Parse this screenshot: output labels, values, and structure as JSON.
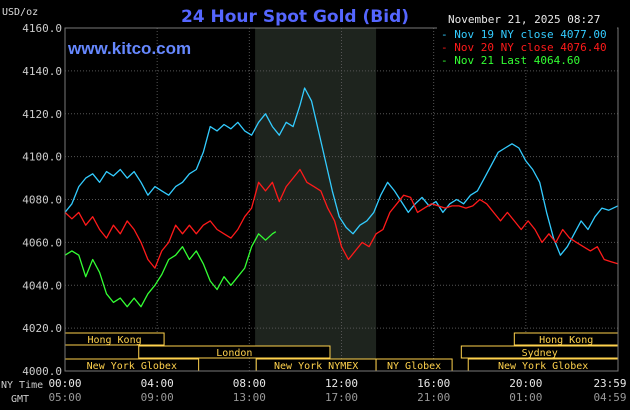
{
  "chart_data": {
    "type": "line",
    "title": "24 Hour Spot Gold (Bid)",
    "watermark": "www.kitco.com",
    "timestamp": "November 21, 2025 08:27",
    "ylabel": "USD/oz",
    "ylim": [
      4000,
      4160
    ],
    "yticks": [
      "4160.0",
      "4140.0",
      "4120.0",
      "4100.0",
      "4080.0",
      "4060.0",
      "4040.0",
      "4020.0",
      "4000.0"
    ],
    "xlim": [
      0,
      24
    ],
    "xticks_ny": [
      "00:00",
      "04:00",
      "08:00",
      "12:00",
      "16:00",
      "20:00",
      "23:59"
    ],
    "xticks_gmt": [
      "05:00",
      "09:00",
      "13:00",
      "17:00",
      "21:00",
      "01:00",
      "04:59"
    ],
    "x_axis_labels": [
      "NY Time",
      "GMT"
    ],
    "grid": true,
    "legend_position": "top-right",
    "highlight_window_hours": [
      8.25,
      13.5
    ],
    "colors": {
      "cyan": "#33ccff",
      "red": "#ff1a1a",
      "green": "#33ff33",
      "grid": "#555555",
      "session": "#ffd24d",
      "title": "#5566ff",
      "site": "#6688ff",
      "axis_text": "#cccccc"
    },
    "series": [
      {
        "name": "Nov 19",
        "legend": "Nov 19 NY close 4077.00",
        "color": "#33ccff",
        "points": [
          [
            0,
            4074
          ],
          [
            0.3,
            4078
          ],
          [
            0.6,
            4086
          ],
          [
            0.9,
            4090
          ],
          [
            1.2,
            4092
          ],
          [
            1.5,
            4088
          ],
          [
            1.8,
            4093
          ],
          [
            2.1,
            4091
          ],
          [
            2.4,
            4094
          ],
          [
            2.7,
            4090
          ],
          [
            3.0,
            4093
          ],
          [
            3.3,
            4088
          ],
          [
            3.6,
            4082
          ],
          [
            3.9,
            4086
          ],
          [
            4.2,
            4084
          ],
          [
            4.5,
            4082
          ],
          [
            4.8,
            4086
          ],
          [
            5.1,
            4088
          ],
          [
            5.4,
            4092
          ],
          [
            5.7,
            4094
          ],
          [
            6.0,
            4102
          ],
          [
            6.3,
            4114
          ],
          [
            6.6,
            4112
          ],
          [
            6.9,
            4115
          ],
          [
            7.2,
            4113
          ],
          [
            7.5,
            4116
          ],
          [
            7.8,
            4112
          ],
          [
            8.1,
            4110
          ],
          [
            8.4,
            4116
          ],
          [
            8.7,
            4120
          ],
          [
            9.0,
            4114
          ],
          [
            9.3,
            4110
          ],
          [
            9.6,
            4116
          ],
          [
            9.9,
            4114
          ],
          [
            10.2,
            4124
          ],
          [
            10.4,
            4132
          ],
          [
            10.7,
            4126
          ],
          [
            11.0,
            4112
          ],
          [
            11.3,
            4098
          ],
          [
            11.6,
            4084
          ],
          [
            11.9,
            4072
          ],
          [
            12.2,
            4067
          ],
          [
            12.5,
            4064
          ],
          [
            12.8,
            4068
          ],
          [
            13.1,
            4070
          ],
          [
            13.4,
            4074
          ],
          [
            13.7,
            4082
          ],
          [
            14.0,
            4088
          ],
          [
            14.3,
            4084
          ],
          [
            14.6,
            4079
          ],
          [
            14.9,
            4074
          ],
          [
            15.2,
            4078
          ],
          [
            15.5,
            4081
          ],
          [
            15.8,
            4077
          ],
          [
            16.1,
            4079
          ],
          [
            16.4,
            4074
          ],
          [
            16.7,
            4078
          ],
          [
            17.0,
            4080
          ],
          [
            17.3,
            4078
          ],
          [
            17.6,
            4082
          ],
          [
            17.9,
            4084
          ],
          [
            18.2,
            4090
          ],
          [
            18.5,
            4096
          ],
          [
            18.8,
            4102
          ],
          [
            19.1,
            4104
          ],
          [
            19.4,
            4106
          ],
          [
            19.7,
            4104
          ],
          [
            20.0,
            4098
          ],
          [
            20.3,
            4094
          ],
          [
            20.6,
            4088
          ],
          [
            20.9,
            4074
          ],
          [
            21.2,
            4062
          ],
          [
            21.5,
            4054
          ],
          [
            21.8,
            4058
          ],
          [
            22.1,
            4064
          ],
          [
            22.4,
            4070
          ],
          [
            22.7,
            4066
          ],
          [
            23.0,
            4072
          ],
          [
            23.3,
            4076
          ],
          [
            23.6,
            4075
          ],
          [
            23.99,
            4077
          ]
        ]
      },
      {
        "name": "Nov 20",
        "legend": "Nov 20 NY close 4076.40",
        "color": "#ff1a1a",
        "points": [
          [
            0,
            4074
          ],
          [
            0.3,
            4071
          ],
          [
            0.6,
            4074
          ],
          [
            0.9,
            4068
          ],
          [
            1.2,
            4072
          ],
          [
            1.5,
            4066
          ],
          [
            1.8,
            4062
          ],
          [
            2.1,
            4068
          ],
          [
            2.4,
            4064
          ],
          [
            2.7,
            4070
          ],
          [
            3.0,
            4066
          ],
          [
            3.3,
            4060
          ],
          [
            3.6,
            4052
          ],
          [
            3.9,
            4048
          ],
          [
            4.2,
            4056
          ],
          [
            4.5,
            4060
          ],
          [
            4.8,
            4068
          ],
          [
            5.1,
            4064
          ],
          [
            5.4,
            4068
          ],
          [
            5.7,
            4064
          ],
          [
            6.0,
            4068
          ],
          [
            6.3,
            4070
          ],
          [
            6.6,
            4066
          ],
          [
            6.9,
            4064
          ],
          [
            7.2,
            4062
          ],
          [
            7.5,
            4066
          ],
          [
            7.8,
            4072
          ],
          [
            8.1,
            4076
          ],
          [
            8.4,
            4088
          ],
          [
            8.7,
            4084
          ],
          [
            9.0,
            4088
          ],
          [
            9.3,
            4079
          ],
          [
            9.6,
            4086
          ],
          [
            9.9,
            4090
          ],
          [
            10.2,
            4094
          ],
          [
            10.5,
            4088
          ],
          [
            10.8,
            4086
          ],
          [
            11.1,
            4084
          ],
          [
            11.4,
            4076
          ],
          [
            11.7,
            4070
          ],
          [
            12.0,
            4058
          ],
          [
            12.3,
            4052
          ],
          [
            12.6,
            4056
          ],
          [
            12.9,
            4060
          ],
          [
            13.2,
            4058
          ],
          [
            13.5,
            4064
          ],
          [
            13.8,
            4066
          ],
          [
            14.1,
            4074
          ],
          [
            14.4,
            4078
          ],
          [
            14.7,
            4082
          ],
          [
            15.0,
            4081
          ],
          [
            15.3,
            4074
          ],
          [
            15.6,
            4076
          ],
          [
            15.9,
            4078
          ],
          [
            16.2,
            4077
          ],
          [
            16.5,
            4076
          ],
          [
            16.8,
            4077
          ],
          [
            17.1,
            4077
          ],
          [
            17.4,
            4076
          ],
          [
            17.7,
            4077
          ],
          [
            18.0,
            4080
          ],
          [
            18.3,
            4078
          ],
          [
            18.6,
            4074
          ],
          [
            18.9,
            4070
          ],
          [
            19.2,
            4074
          ],
          [
            19.5,
            4070
          ],
          [
            19.8,
            4066
          ],
          [
            20.1,
            4070
          ],
          [
            20.4,
            4066
          ],
          [
            20.7,
            4060
          ],
          [
            21.0,
            4064
          ],
          [
            21.3,
            4060
          ],
          [
            21.6,
            4066
          ],
          [
            21.9,
            4062
          ],
          [
            22.2,
            4060
          ],
          [
            22.5,
            4058
          ],
          [
            22.8,
            4056
          ],
          [
            23.1,
            4058
          ],
          [
            23.4,
            4052
          ],
          [
            23.7,
            4051
          ],
          [
            23.99,
            4050
          ]
        ]
      },
      {
        "name": "Nov 21",
        "legend": "Nov 21 Last 4064.60",
        "color": "#33ff33",
        "points": [
          [
            0,
            4054
          ],
          [
            0.3,
            4056
          ],
          [
            0.6,
            4054
          ],
          [
            0.9,
            4044
          ],
          [
            1.2,
            4052
          ],
          [
            1.5,
            4046
          ],
          [
            1.8,
            4036
          ],
          [
            2.1,
            4032
          ],
          [
            2.4,
            4034
          ],
          [
            2.7,
            4030
          ],
          [
            3.0,
            4034
          ],
          [
            3.3,
            4030
          ],
          [
            3.6,
            4036
          ],
          [
            3.9,
            4040
          ],
          [
            4.2,
            4045
          ],
          [
            4.5,
            4052
          ],
          [
            4.8,
            4054
          ],
          [
            5.1,
            4058
          ],
          [
            5.4,
            4052
          ],
          [
            5.7,
            4056
          ],
          [
            6.0,
            4050
          ],
          [
            6.3,
            4042
          ],
          [
            6.6,
            4038
          ],
          [
            6.9,
            4044
          ],
          [
            7.2,
            4040
          ],
          [
            7.5,
            4044
          ],
          [
            7.8,
            4048
          ],
          [
            8.1,
            4058
          ],
          [
            8.4,
            4064
          ],
          [
            8.7,
            4061
          ],
          [
            9.0,
            4064
          ],
          [
            9.15,
            4065
          ]
        ]
      }
    ],
    "sessions": [
      {
        "label": "Hong Kong",
        "start": 0,
        "end": 4.3,
        "row": 1
      },
      {
        "label": "Hong Kong",
        "start": 19.5,
        "end": 24,
        "row": 1
      },
      {
        "label": "London",
        "start": 3.2,
        "end": 11.5,
        "row": 2
      },
      {
        "label": "Sydney",
        "start": 17.2,
        "end": 24,
        "row": 2
      },
      {
        "label": "New York Globex",
        "start": 0,
        "end": 5.8,
        "row": 3
      },
      {
        "label": "New York Globex",
        "start": 17.5,
        "end": 24,
        "row": 3
      },
      {
        "label": "New York NYMEX",
        "start": 8.3,
        "end": 13.5,
        "row": 3
      },
      {
        "label": "NY Globex",
        "start": 13.5,
        "end": 16.8,
        "row": 3
      }
    ]
  }
}
